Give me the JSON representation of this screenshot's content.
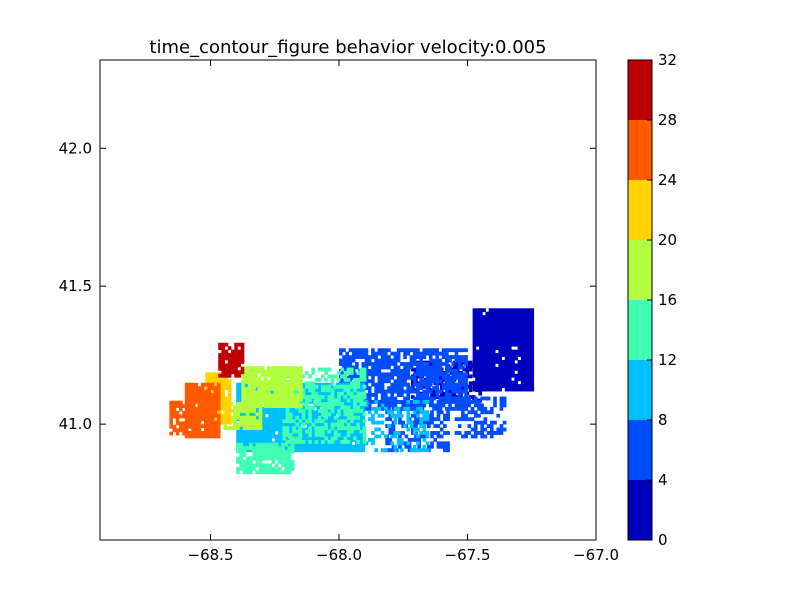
{
  "chart_data": {
    "type": "heatmap",
    "title": "time_contour_figure behavior velocity:0.005",
    "xlabel": "",
    "ylabel": "",
    "xlim": [
      -68.93,
      -67.0
    ],
    "ylim": [
      40.58,
      42.32
    ],
    "x_ticks": [
      {
        "value": -68.5,
        "label": "−68.5"
      },
      {
        "value": -68.0,
        "label": "−68.0"
      },
      {
        "value": -67.5,
        "label": "−67.5"
      },
      {
        "value": -67.0,
        "label": "−67.0"
      }
    ],
    "y_ticks": [
      {
        "value": 41.0,
        "label": "41.0"
      },
      {
        "value": 41.5,
        "label": "41.5"
      },
      {
        "value": 42.0,
        "label": "42.0"
      }
    ],
    "colorbar": {
      "range": [
        0,
        32
      ],
      "ticks": [
        "0",
        "4",
        "8",
        "12",
        "16",
        "20",
        "24",
        "28",
        "32"
      ],
      "levels": [
        {
          "min": 0,
          "max": 4,
          "color": "#0000bf"
        },
        {
          "min": 4,
          "max": 8,
          "color": "#004cff"
        },
        {
          "min": 8,
          "max": 12,
          "color": "#00bfff"
        },
        {
          "min": 12,
          "max": 16,
          "color": "#40ffb2"
        },
        {
          "min": 16,
          "max": 20,
          "color": "#b2ff40"
        },
        {
          "min": 20,
          "max": 24,
          "color": "#ffd200"
        },
        {
          "min": 24,
          "max": 28,
          "color": "#ff5a00"
        },
        {
          "min": 28,
          "max": 32,
          "color": "#bf0000"
        }
      ]
    },
    "regions": [
      {
        "label": "0-4",
        "level": 0,
        "x": [
          -67.48,
          -67.25
        ],
        "y": [
          41.12,
          41.42
        ],
        "density": 0.97
      },
      {
        "label": "0-4",
        "level": 0,
        "x": [
          -67.72,
          -67.45
        ],
        "y": [
          41.08,
          41.22
        ],
        "density": 0.7
      },
      {
        "label": "4-8",
        "level": 1,
        "x": [
          -68.0,
          -67.5
        ],
        "y": [
          41.05,
          41.27
        ],
        "density": 0.78
      },
      {
        "label": "4-8",
        "level": 1,
        "x": [
          -67.55,
          -67.35
        ],
        "y": [
          40.95,
          41.1
        ],
        "density": 0.45
      },
      {
        "label": "4-8",
        "level": 1,
        "x": [
          -67.82,
          -67.58
        ],
        "y": [
          40.9,
          41.08
        ],
        "density": 0.5
      },
      {
        "label": "8-12",
        "level": 2,
        "x": [
          -68.4,
          -67.9
        ],
        "y": [
          40.9,
          41.15
        ],
        "density": 0.97
      },
      {
        "label": "8-12",
        "level": 2,
        "x": [
          -67.95,
          -67.65
        ],
        "y": [
          40.9,
          41.08
        ],
        "density": 0.35
      },
      {
        "label": "12-16",
        "level": 3,
        "x": [
          -68.4,
          -68.18
        ],
        "y": [
          40.82,
          40.93
        ],
        "density": 0.85
      },
      {
        "label": "12-16",
        "level": 3,
        "x": [
          -68.22,
          -67.9
        ],
        "y": [
          40.93,
          41.2
        ],
        "density": 0.55
      },
      {
        "label": "16-20",
        "level": 4,
        "x": [
          -68.38,
          -68.15
        ],
        "y": [
          41.06,
          41.2
        ],
        "density": 0.95
      },
      {
        "label": "16-20",
        "level": 4,
        "x": [
          -68.45,
          -68.3
        ],
        "y": [
          40.98,
          41.08
        ],
        "density": 0.8
      },
      {
        "label": "20-24",
        "level": 5,
        "x": [
          -68.52,
          -68.42
        ],
        "y": [
          41.0,
          41.18
        ],
        "density": 0.95
      },
      {
        "label": "24-28",
        "level": 6,
        "x": [
          -68.6,
          -68.47
        ],
        "y": [
          40.95,
          41.15
        ],
        "density": 0.9
      },
      {
        "label": "24-28",
        "level": 6,
        "x": [
          -68.66,
          -68.57
        ],
        "y": [
          40.96,
          41.08
        ],
        "density": 0.75
      },
      {
        "label": "28-32",
        "level": 7,
        "x": [
          -68.47,
          -68.37
        ],
        "y": [
          41.17,
          41.29
        ],
        "density": 0.85
      }
    ]
  }
}
